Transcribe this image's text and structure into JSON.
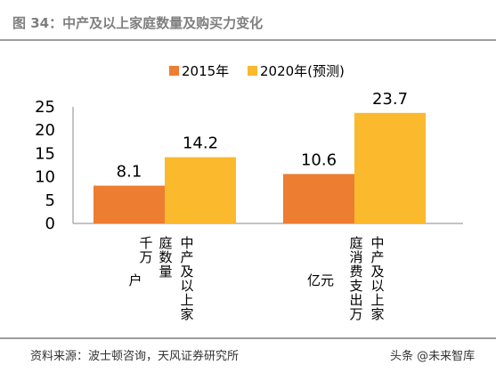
{
  "header": {
    "title": "图 34：中产及以上家庭数量及购买力变化"
  },
  "footer": {
    "source": "资料来源：波士顿咨询，天风证券研究所",
    "watermark": "头条 @未来智库"
  },
  "chart_data": {
    "type": "bar",
    "title": "",
    "legend_position": "top-center",
    "grid": false,
    "ylim": [
      0,
      25
    ],
    "yticks": [
      "0",
      "5",
      "10",
      "15",
      "20",
      "25"
    ],
    "categories": [
      {
        "name_lines": [
          "中产及以上家",
          "庭数量",
          "千万"
        ],
        "unit_label": "户"
      },
      {
        "name_lines": [
          "中产及以上家",
          "庭消费支出万",
          ""
        ],
        "unit_label": "亿元"
      }
    ],
    "series": [
      {
        "name": "2015年",
        "color": "#ED7D31",
        "values": [
          8.1,
          10.6
        ],
        "labels": [
          "8.1",
          "10.6"
        ]
      },
      {
        "name": "2020年(预测)",
        "color": "#FBB92E",
        "values": [
          14.2,
          23.7
        ],
        "labels": [
          "14.2",
          "23.7"
        ]
      }
    ]
  }
}
